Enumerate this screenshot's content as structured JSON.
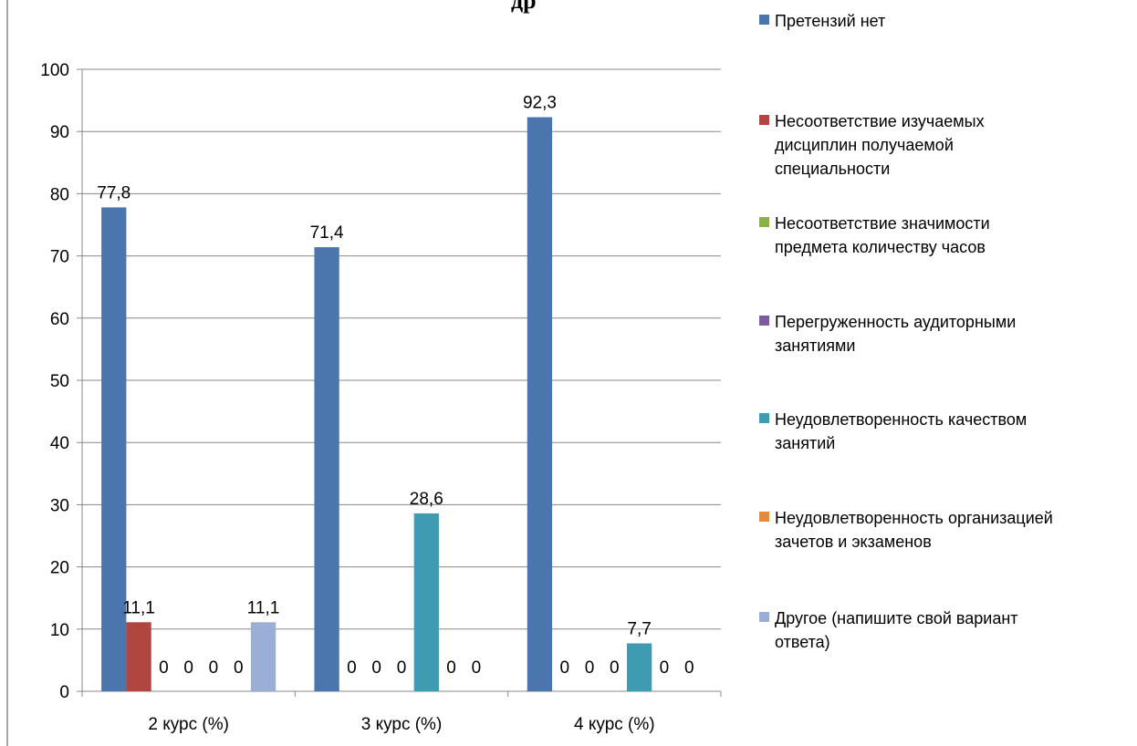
{
  "chart_data": {
    "type": "bar",
    "title": "",
    "xlabel": "",
    "ylabel": "",
    "ylim": [
      0,
      100
    ],
    "yticks": [
      "0",
      "10",
      "20",
      "30",
      "40",
      "50",
      "60",
      "70",
      "80",
      "90",
      "100"
    ],
    "grid": true,
    "legend_position": "right",
    "categories": [
      "2 курс (%)",
      "3 курс (%)",
      "4 курс (%)"
    ],
    "series": [
      {
        "name": "Претензий нет",
        "color": "#4A76AD",
        "values": [
          77.8,
          71.4,
          92.3
        ],
        "labels": [
          "77,8",
          "71,4",
          "92,3"
        ]
      },
      {
        "name": "Несоответствие изучаемых\nдисциплин получаемой\nспециальности",
        "color": "#B0463F",
        "values": [
          11.1,
          0,
          0
        ],
        "labels": [
          "11,1",
          "0",
          "0"
        ]
      },
      {
        "name": "Несоответствие значимости\nпредмета количеству часов",
        "color": "#8CB04A",
        "values": [
          0,
          0,
          0
        ],
        "labels": [
          "0",
          "0",
          "0"
        ]
      },
      {
        "name": "Перегруженность аудиторными\nзанятиями",
        "color": "#7B5CA0",
        "values": [
          0,
          0,
          0
        ],
        "labels": [
          "0",
          "0",
          "0"
        ]
      },
      {
        "name": "Неудовлетворенность качеством\nзанятий",
        "color": "#3E9BB2",
        "values": [
          0,
          28.6,
          7.7
        ],
        "labels": [
          "0",
          "28,6",
          "7,7"
        ]
      },
      {
        "name": "Неудовлетворенность организацией\nзачетов и экзаменов",
        "color": "#E6893A",
        "values": [
          0,
          0,
          0
        ],
        "labels": [
          "0",
          "0",
          "0"
        ]
      },
      {
        "name": "Другое (напишите свой вариант\nответа)",
        "color": "#9AAED6",
        "values": [
          11.1,
          0,
          0
        ],
        "labels": [
          "11,1",
          "0",
          "0"
        ]
      }
    ]
  },
  "title_fragment": "др"
}
